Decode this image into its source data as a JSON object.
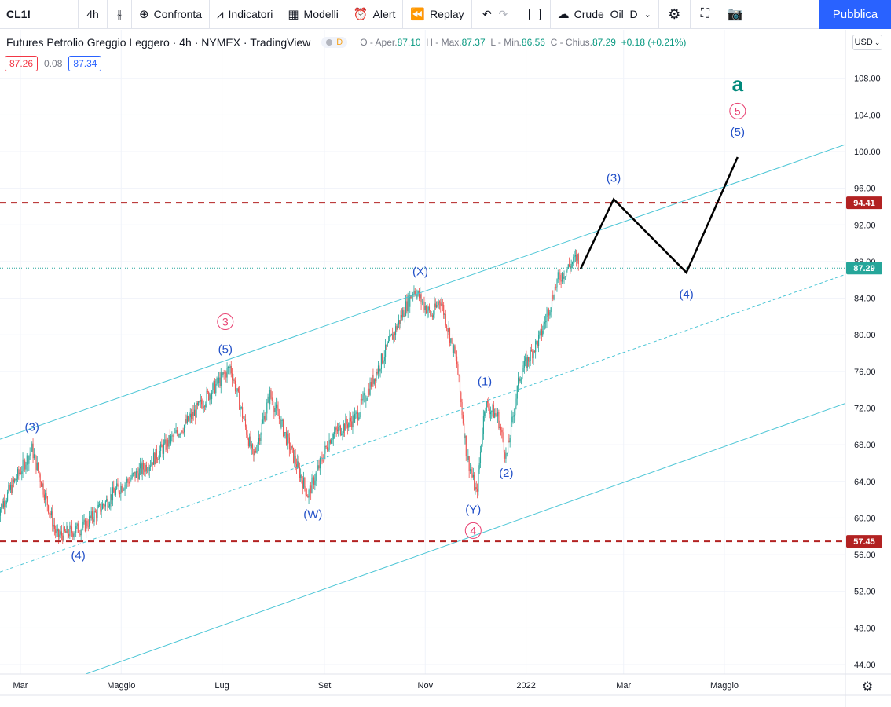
{
  "toolbar": {
    "symbol": "CL1!",
    "interval": "4h",
    "compare_label": "Confronta",
    "indicators_label": "Indicatori",
    "templates_label": "Modelli",
    "alert_label": "Alert",
    "replay_label": "Replay",
    "layout_name": "Crude_Oil_D",
    "publish_label": "Pubblica"
  },
  "legend": {
    "title": "Futures Petrolio Greggio Leggero · 4h · NYMEX · TradingView",
    "badge": "D",
    "open_label": "O - Aper.",
    "open": "87.10",
    "high_label": "H - Max.",
    "high": "87.37",
    "low_label": "L - Min.",
    "low": "86.56",
    "close_label": "C - Chius.",
    "close": "87.29",
    "change": "+0.18 (+0.21%)"
  },
  "prices": {
    "sell": "87.26",
    "spread": "0.08",
    "buy": "87.34"
  },
  "currency": "USD",
  "colors": {
    "up": "#26a69a",
    "down": "#ef5350",
    "channel": "#4dc6d6",
    "hline": "#b22222",
    "wave_blue": "#2250c8",
    "wave_pink": "#e83e6f",
    "wave_green": "#00897b",
    "last_price": "#26a69a"
  },
  "chart_data": {
    "type": "candlestick",
    "title": "",
    "yaxis_ticks": [
      "108.00",
      "104.00",
      "100.00",
      "96.00",
      "92.00",
      "88.00",
      "84.00",
      "80.00",
      "76.00",
      "72.00",
      "68.00",
      "64.00",
      "60.00",
      "56.00",
      "52.00",
      "48.00",
      "44.00"
    ],
    "ylim": [
      43,
      111
    ],
    "xaxis_ticks": [
      {
        "label": "Mar",
        "date": "2021-03-01"
      },
      {
        "label": "Maggio",
        "date": "2021-05-01"
      },
      {
        "label": "Lug",
        "date": "2021-07-01"
      },
      {
        "label": "Set",
        "date": "2021-09-01"
      },
      {
        "label": "Nov",
        "date": "2021-11-01"
      },
      {
        "label": "2022",
        "date": "2022-01-01"
      },
      {
        "label": "Mar",
        "date": "2022-03-01"
      },
      {
        "label": "Maggio",
        "date": "2022-05-01"
      }
    ],
    "price_path": [
      [
        "2021-02-15",
        60.5
      ],
      [
        "2021-03-08",
        67.5
      ],
      [
        "2021-03-23",
        58.0
      ],
      [
        "2021-04-08",
        59.0
      ],
      [
        "2021-04-28",
        63.0
      ],
      [
        "2021-05-18",
        66.0
      ],
      [
        "2021-06-10",
        70.5
      ],
      [
        "2021-07-06",
        76.5
      ],
      [
        "2021-07-20",
        66.5
      ],
      [
        "2021-07-30",
        73.5
      ],
      [
        "2021-08-22",
        62.5
      ],
      [
        "2021-09-05",
        69.0
      ],
      [
        "2021-09-20",
        71.0
      ],
      [
        "2021-10-25",
        85.0
      ],
      [
        "2021-11-05",
        82.0
      ],
      [
        "2021-11-10",
        84.0
      ],
      [
        "2021-11-20",
        77.0
      ],
      [
        "2021-11-26",
        67.0
      ],
      [
        "2021-12-02",
        62.5
      ],
      [
        "2021-12-07",
        72.5
      ],
      [
        "2021-12-15",
        71.0
      ],
      [
        "2021-12-20",
        66.5
      ],
      [
        "2021-12-28",
        75.5
      ],
      [
        "2022-01-10",
        80.0
      ],
      [
        "2022-01-20",
        86.0
      ],
      [
        "2022-02-01",
        88.5
      ],
      [
        "2022-02-02",
        87.29
      ]
    ],
    "last_price": "87.29",
    "horizontal_levels": [
      {
        "value": 94.41,
        "label": "94.41"
      },
      {
        "value": 57.45,
        "label": "57.45"
      }
    ],
    "projection": [
      [
        "2022-02-03",
        87.2
      ],
      [
        "2022-02-23",
        94.8
      ],
      [
        "2022-04-08",
        86.8
      ],
      [
        "2022-05-09",
        99.4
      ]
    ],
    "wave_labels": [
      {
        "text": "(3)",
        "date": "2021-03-08",
        "price": 69.5,
        "color": "blue"
      },
      {
        "text": "(4)",
        "date": "2021-04-05",
        "price": 55.5,
        "color": "blue"
      },
      {
        "text": "(5)",
        "date": "2021-07-03",
        "price": 78.0,
        "color": "blue"
      },
      {
        "text": "3",
        "date": "2021-07-03",
        "price": 81.0,
        "color": "pink",
        "circled": true
      },
      {
        "text": "(W)",
        "date": "2021-08-25",
        "price": 60.0,
        "color": "blue"
      },
      {
        "text": "(X)",
        "date": "2021-10-29",
        "price": 86.5,
        "color": "blue"
      },
      {
        "text": "(1)",
        "date": "2021-12-07",
        "price": 74.5,
        "color": "blue"
      },
      {
        "text": "(2)",
        "date": "2021-12-20",
        "price": 64.5,
        "color": "blue"
      },
      {
        "text": "(Y)",
        "date": "2021-11-30",
        "price": 60.5,
        "color": "blue"
      },
      {
        "text": "4",
        "date": "2021-11-30",
        "price": 58.2,
        "color": "pink",
        "circled": true
      },
      {
        "text": "(3)",
        "date": "2022-02-23",
        "price": 96.7,
        "color": "blue"
      },
      {
        "text": "(4)",
        "date": "2022-04-08",
        "price": 84.0,
        "color": "blue"
      },
      {
        "text": "(5)",
        "date": "2022-05-09",
        "price": 101.7,
        "color": "blue"
      },
      {
        "text": "5",
        "date": "2022-05-09",
        "price": 104.0,
        "color": "pink",
        "circled": true
      },
      {
        "text": "a",
        "date": "2022-05-09",
        "price": 106.6,
        "color": "green"
      }
    ],
    "channel_lines": [
      {
        "style": "solid",
        "from": [
          "2021-02-15",
          68.5
        ],
        "to": [
          "2022-06-15",
          99.0
        ]
      },
      {
        "style": "dashed",
        "from": [
          "2021-02-15",
          54.0
        ],
        "to": [
          "2022-06-15",
          84.8
        ]
      },
      {
        "style": "solid",
        "from": [
          "2021-04-10",
          43.0
        ],
        "to": [
          "2022-06-15",
          70.7
        ]
      }
    ]
  }
}
